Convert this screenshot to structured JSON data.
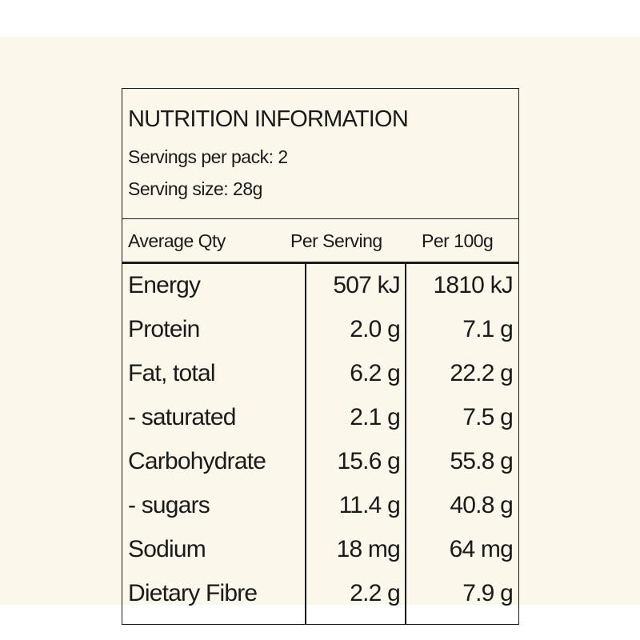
{
  "label": {
    "title": "NUTRITION INFORMATION",
    "servings_per_pack": "Servings per pack: 2",
    "serving_size": "Serving size: 28g"
  },
  "columns": {
    "qty": "Average Qty",
    "per_serving": "Per Serving",
    "per_100g": "Per 100g"
  },
  "rows": [
    {
      "name": "Energy",
      "per_serving": "507 kJ",
      "per_100g": "1810 kJ"
    },
    {
      "name": "Protein",
      "per_serving": "2.0 g",
      "per_100g": "7.1 g"
    },
    {
      "name": "Fat, total",
      "per_serving": "6.2 g",
      "per_100g": "22.2 g"
    },
    {
      "name": "- saturated",
      "per_serving": "2.1 g",
      "per_100g": "7.5 g"
    },
    {
      "name": "Carbohydrate",
      "per_serving": "15.6 g",
      "per_100g": "55.8 g"
    },
    {
      "name": "- sugars",
      "per_serving": "11.4 g",
      "per_100g": "40.8 g"
    },
    {
      "name": "Sodium",
      "per_serving": "18 mg",
      "per_100g": "64 mg"
    },
    {
      "name": "Dietary Fibre",
      "per_serving": "2.2 g",
      "per_100g": "7.9 g"
    }
  ],
  "colors": {
    "background": "#fbf7ea",
    "ink": "#1a1a1a"
  }
}
